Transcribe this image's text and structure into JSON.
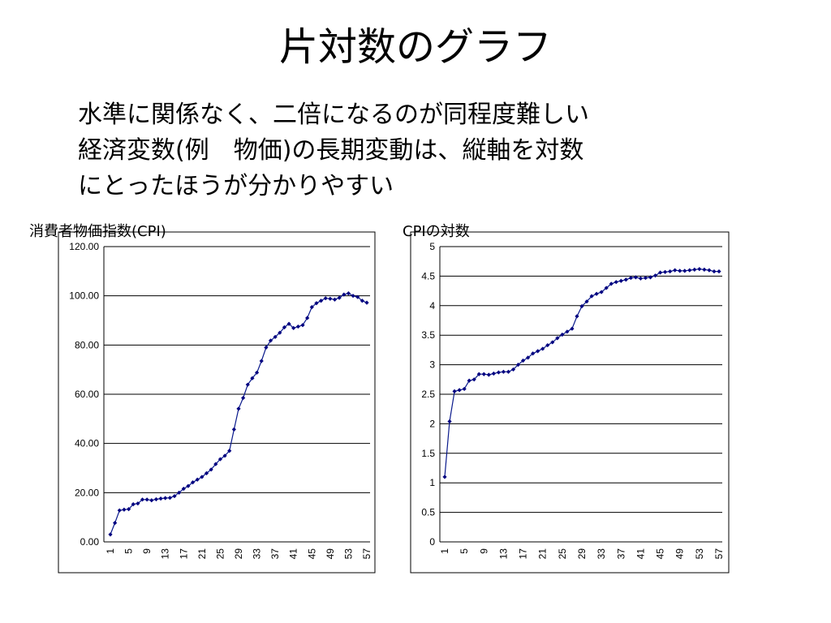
{
  "slide": {
    "title": "片対数のグラフ",
    "body": "水準に関係なく、二倍になるのが同程度難しい\n経済変数(例　物価)の長期変動は、縦軸を対数\nにとったほうが分かりやすい"
  },
  "chart_data": [
    {
      "type": "line",
      "title": "消費者物価指数(CPI)",
      "xlabel": "",
      "ylabel": "",
      "ylim": [
        0,
        120
      ],
      "yticks": [
        "0.00",
        "20.00",
        "40.00",
        "60.00",
        "80.00",
        "100.00",
        "120.00"
      ],
      "xticks": [
        "1",
        "5",
        "9",
        "13",
        "17",
        "21",
        "25",
        "29",
        "33",
        "37",
        "41",
        "45",
        "49",
        "53",
        "57"
      ],
      "grid": true,
      "marker_color": "#000080",
      "x": [
        1,
        2,
        3,
        4,
        5,
        6,
        7,
        8,
        9,
        10,
        11,
        12,
        13,
        14,
        15,
        16,
        17,
        18,
        19,
        20,
        21,
        22,
        23,
        24,
        25,
        26,
        27,
        28,
        29,
        30,
        31,
        32,
        33,
        34,
        35,
        36,
        37,
        38,
        39,
        40,
        41,
        42,
        43,
        44,
        45,
        46,
        47,
        48,
        49,
        50,
        51,
        52,
        53,
        54,
        55,
        56,
        57
      ],
      "series": [
        {
          "values": [
            3.0,
            7.7,
            12.8,
            13.1,
            13.3,
            15.3,
            15.6,
            17.2,
            17.2,
            16.9,
            17.3,
            17.6,
            17.8,
            17.9,
            18.6,
            20.0,
            21.6,
            22.7,
            24.2,
            25.3,
            26.4,
            27.9,
            29.4,
            31.6,
            33.6,
            35.0,
            37.0,
            45.7,
            54.1,
            58.5,
            63.9,
            66.5,
            68.8,
            73.5,
            79.0,
            81.8,
            83.3,
            85.0,
            87.2,
            88.6,
            86.9,
            87.5,
            88.1,
            91.0,
            95.4,
            97.0,
            98.0,
            99.0,
            98.8,
            98.5,
            99.2,
            100.5,
            101.0,
            100.0,
            99.5,
            98.0,
            97.2
          ]
        }
      ]
    },
    {
      "type": "line",
      "title": "CPIの対数",
      "xlabel": "",
      "ylabel": "",
      "ylim": [
        0,
        5
      ],
      "yticks": [
        "0",
        "0.5",
        "1",
        "1.5",
        "2",
        "2.5",
        "3",
        "3.5",
        "4",
        "4.5",
        "5"
      ],
      "xticks": [
        "1",
        "5",
        "9",
        "13",
        "17",
        "21",
        "25",
        "29",
        "33",
        "37",
        "41",
        "45",
        "49",
        "53",
        "57"
      ],
      "grid": true,
      "marker_color": "#000080",
      "x": [
        1,
        2,
        3,
        4,
        5,
        6,
        7,
        8,
        9,
        10,
        11,
        12,
        13,
        14,
        15,
        16,
        17,
        18,
        19,
        20,
        21,
        22,
        23,
        24,
        25,
        26,
        27,
        28,
        29,
        30,
        31,
        32,
        33,
        34,
        35,
        36,
        37,
        38,
        39,
        40,
        41,
        42,
        43,
        44,
        45,
        46,
        47,
        48,
        49,
        50,
        51,
        52,
        53,
        54,
        55,
        56,
        57
      ],
      "series": [
        {
          "values": [
            1.1,
            2.04,
            2.55,
            2.57,
            2.59,
            2.73,
            2.75,
            2.84,
            2.84,
            2.83,
            2.85,
            2.87,
            2.88,
            2.88,
            2.92,
            3.0,
            3.07,
            3.12,
            3.19,
            3.23,
            3.27,
            3.33,
            3.38,
            3.45,
            3.51,
            3.56,
            3.61,
            3.82,
            3.99,
            4.07,
            4.16,
            4.2,
            4.23,
            4.3,
            4.37,
            4.4,
            4.42,
            4.44,
            4.47,
            4.48,
            4.46,
            4.47,
            4.48,
            4.51,
            4.56,
            4.57,
            4.58,
            4.6,
            4.59,
            4.59,
            4.6,
            4.61,
            4.62,
            4.61,
            4.6,
            4.58,
            4.58
          ]
        }
      ]
    }
  ]
}
